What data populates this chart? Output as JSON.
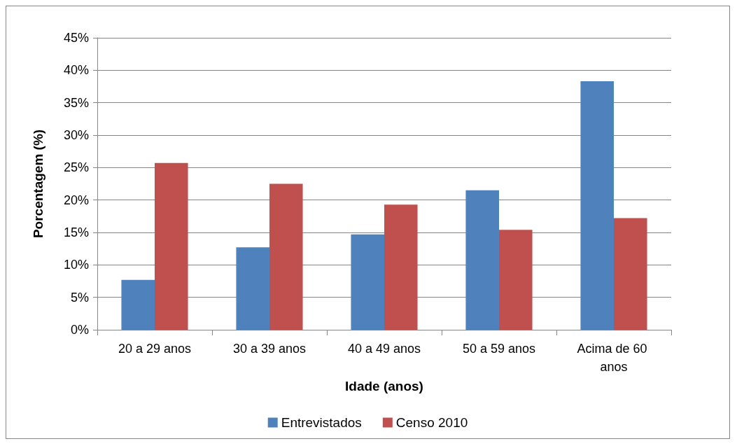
{
  "chart_data": {
    "type": "bar",
    "xlabel": "Idade (anos)",
    "ylabel": "Porcentagem (%)",
    "categories": [
      "20 a 29 anos",
      "30 a 39 anos",
      "40 a 49 anos",
      "50 a 59 anos",
      "Acima de 60 anos"
    ],
    "series": [
      {
        "name": "Entrevistados",
        "color": "#4f81bd",
        "values": [
          7.7,
          12.7,
          14.7,
          21.5,
          38.3
        ]
      },
      {
        "name": "Censo 2010",
        "color": "#c0504d",
        "values": [
          25.7,
          22.5,
          19.3,
          15.4,
          17.2
        ]
      }
    ],
    "ylim": [
      0,
      45
    ],
    "yticks": [
      {
        "value": 0,
        "label": "0%"
      },
      {
        "value": 5,
        "label": "5%"
      },
      {
        "value": 10,
        "label": "10%"
      },
      {
        "value": 15,
        "label": "15%"
      },
      {
        "value": 20,
        "label": "20%"
      },
      {
        "value": 25,
        "label": "25%"
      },
      {
        "value": 30,
        "label": "30%"
      },
      {
        "value": 35,
        "label": "35%"
      },
      {
        "value": 40,
        "label": "40%"
      },
      {
        "value": 45,
        "label": "45%"
      }
    ],
    "grid": "y",
    "legend": "bottom"
  }
}
